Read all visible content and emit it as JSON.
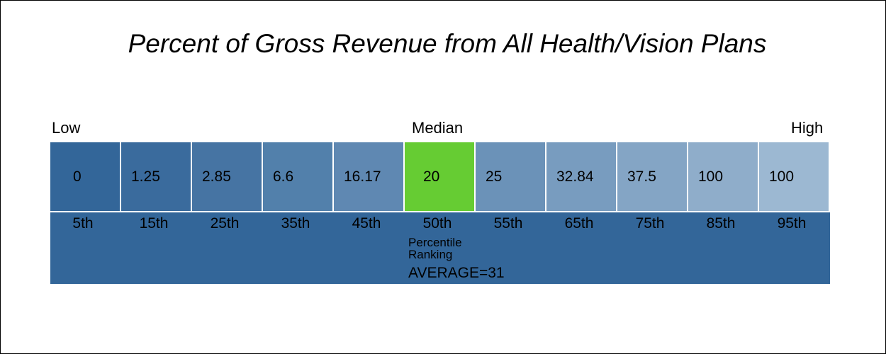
{
  "chart_data": {
    "type": "table",
    "title": "Percent of Gross Revenue from All Health/Vision Plans",
    "edge_labels": {
      "low": "Low",
      "median": "Median",
      "high": "High"
    },
    "values": [
      "0",
      "1.25",
      "2.85",
      "6.6",
      "16.17",
      "20",
      "25",
      "32.84",
      "37.5",
      "100",
      "100"
    ],
    "percentiles": [
      "5th",
      "15th",
      "25th",
      "35th",
      "45th",
      "50th",
      "55th",
      "65th",
      "75th",
      "85th",
      "95th"
    ],
    "ranking_label": "Percentile Ranking",
    "average_text": "AVERAGE=31",
    "highlight_index": 5,
    "colors": {
      "ranking_bar": "#336699",
      "highlight": "#66cc33",
      "cells": [
        "#336699",
        "#3a6b9d",
        "#4674a3",
        "#5280ab",
        "#5f88b2",
        "#66cc33",
        "#6b92b8",
        "#789cbf",
        "#84a5c5",
        "#8fadca",
        "#9cb8d2"
      ]
    }
  }
}
